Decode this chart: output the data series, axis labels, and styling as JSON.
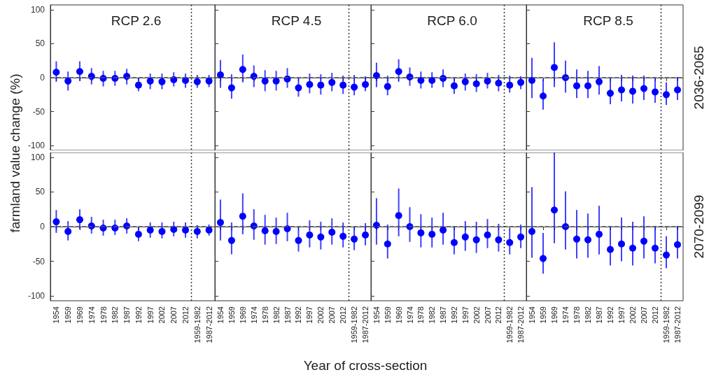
{
  "chart_data": [
    {
      "type": "scatter",
      "title": "RCP 2.6",
      "ylabel": "farmland value change (%)",
      "categories": [
        "1954",
        "1959",
        "1969",
        "1974",
        "1978",
        "1982",
        "1987",
        "1992",
        "1997",
        "2002",
        "2007",
        "2012",
        "1959-1982",
        "1987-2012"
      ],
      "ylim": [
        -107,
        107
      ],
      "yticks": [
        -100,
        -50,
        0,
        50,
        100
      ],
      "tick_labels": "y",
      "grid": false,
      "marker": "circle",
      "ref_lines": [
        {
          "axis": "y",
          "value": 0,
          "line_style": "dashed",
          "color": "#555555"
        },
        {
          "axis": "x",
          "value": "1959-1982",
          "line_style": "dotted",
          "color": "#333333"
        }
      ],
      "series": [
        {
          "color": "#0000ff",
          "values": [
            8,
            -5,
            9,
            2,
            -1,
            -1,
            2,
            -11,
            -5,
            -6,
            -3,
            -4,
            -6,
            -5
          ],
          "errors": [
            [
              -6,
              24
            ],
            [
              -19,
              9
            ],
            [
              -5,
              24
            ],
            [
              -10,
              14
            ],
            [
              -13,
              10
            ],
            [
              -12,
              10
            ],
            [
              -10,
              13
            ],
            [
              -20,
              0
            ],
            [
              -17,
              6
            ],
            [
              -17,
              6
            ],
            [
              -13,
              8
            ],
            [
              -15,
              6
            ],
            [
              -15,
              4
            ],
            [
              -14,
              4
            ]
          ]
        }
      ]
    },
    {
      "type": "scatter",
      "title": "RCP 4.5",
      "categories": [
        "1954",
        "1959",
        "1969",
        "1974",
        "1978",
        "1982",
        "1987",
        "1992",
        "1997",
        "2002",
        "2007",
        "2012",
        "1959-1982",
        "1987-2012"
      ],
      "ylim": [
        -107,
        107
      ],
      "yticks": [
        -100,
        -50,
        0,
        50,
        100
      ],
      "tick_labels": false,
      "grid": false,
      "marker": "circle",
      "ref_lines": [
        {
          "axis": "y",
          "value": 0,
          "line_style": "dashed",
          "color": "#555555"
        },
        {
          "axis": "x",
          "value": "1959-1982",
          "line_style": "dotted",
          "color": "#333333"
        }
      ],
      "series": [
        {
          "color": "#0000ff",
          "values": [
            4,
            -15,
            12,
            2,
            -5,
            -5,
            -2,
            -15,
            -10,
            -11,
            -7,
            -11,
            -14,
            -10
          ],
          "errors": [
            [
              -15,
              26
            ],
            [
              -31,
              5
            ],
            [
              -7,
              34
            ],
            [
              -14,
              18
            ],
            [
              -20,
              11
            ],
            [
              -19,
              10
            ],
            [
              -15,
              14
            ],
            [
              -28,
              0
            ],
            [
              -23,
              6
            ],
            [
              -25,
              5
            ],
            [
              -20,
              7
            ],
            [
              -24,
              3
            ],
            [
              -26,
              4
            ],
            [
              -20,
              2
            ]
          ]
        }
      ]
    },
    {
      "type": "scatter",
      "title": "RCP 6.0",
      "categories": [
        "1954",
        "1959",
        "1969",
        "1974",
        "1978",
        "1982",
        "1987",
        "1992",
        "1997",
        "2002",
        "2007",
        "2012",
        "1959-1982",
        "1987-2012"
      ],
      "ylim": [
        -107,
        107
      ],
      "yticks": [
        -100,
        -50,
        0,
        50,
        100
      ],
      "tick_labels": false,
      "grid": false,
      "marker": "circle",
      "ref_lines": [
        {
          "axis": "y",
          "value": 0,
          "line_style": "dashed",
          "color": "#555555"
        },
        {
          "axis": "x",
          "value": "1959-1982",
          "line_style": "dotted",
          "color": "#333333"
        }
      ],
      "series": [
        {
          "color": "#0000ff",
          "values": [
            3,
            -13,
            9,
            1,
            -4,
            -4,
            -1,
            -12,
            -6,
            -9,
            -5,
            -8,
            -11,
            -7
          ],
          "errors": [
            [
              -14,
              22
            ],
            [
              -26,
              3
            ],
            [
              -6,
              27
            ],
            [
              -12,
              15
            ],
            [
              -16,
              9
            ],
            [
              -15,
              8
            ],
            [
              -14,
              12
            ],
            [
              -24,
              0
            ],
            [
              -19,
              6
            ],
            [
              -21,
              5
            ],
            [
              -16,
              7
            ],
            [
              -20,
              4
            ],
            [
              -22,
              3
            ],
            [
              -17,
              2
            ]
          ]
        }
      ]
    },
    {
      "type": "scatter",
      "title": "RCP 8.5",
      "y2label": "2036-2065",
      "categories": [
        "1954",
        "1959",
        "1969",
        "1974",
        "1978",
        "1982",
        "1987",
        "1992",
        "1997",
        "2002",
        "2007",
        "2012",
        "1959-1982",
        "1987-2012"
      ],
      "ylim": [
        -107,
        107
      ],
      "yticks": [
        -100,
        -50,
        0,
        50,
        100
      ],
      "tick_labels": false,
      "grid": false,
      "marker": "circle",
      "ref_lines": [
        {
          "axis": "y",
          "value": 0,
          "line_style": "dashed",
          "color": "#555555"
        },
        {
          "axis": "x",
          "value": "1959-1982",
          "line_style": "dotted",
          "color": "#333333"
        }
      ],
      "series": [
        {
          "color": "#0000ff",
          "values": [
            -4,
            -27,
            15,
            0,
            -12,
            -12,
            -6,
            -23,
            -18,
            -20,
            -16,
            -21,
            -25,
            -18
          ],
          "errors": [
            [
              -30,
              29
            ],
            [
              -47,
              -2
            ],
            [
              -14,
              52
            ],
            [
              -22,
              25
            ],
            [
              -30,
              12
            ],
            [
              -30,
              10
            ],
            [
              -25,
              17
            ],
            [
              -39,
              0
            ],
            [
              -35,
              4
            ],
            [
              -38,
              3
            ],
            [
              -33,
              3
            ],
            [
              -37,
              0
            ],
            [
              -40,
              -7
            ],
            [
              -33,
              1
            ]
          ]
        }
      ]
    },
    {
      "type": "scatter",
      "categories": [
        "1954",
        "1959",
        "1969",
        "1974",
        "1978",
        "1982",
        "1987",
        "1992",
        "1997",
        "2002",
        "2007",
        "2012",
        "1959-1982",
        "1987-2012"
      ],
      "ylim": [
        -107,
        107
      ],
      "yticks": [
        -100,
        -50,
        0,
        50,
        100
      ],
      "grid": false,
      "marker": "circle",
      "ref_lines": [
        {
          "axis": "y",
          "value": 0,
          "line_style": "dashed",
          "color": "#555555"
        },
        {
          "axis": "x",
          "value": "1959-1982",
          "line_style": "dotted",
          "color": "#333333"
        }
      ],
      "series": [
        {
          "color": "#0000ff",
          "values": [
            7,
            -7,
            10,
            1,
            -2,
            -2,
            1,
            -11,
            -5,
            -7,
            -4,
            -5,
            -7,
            -5
          ],
          "errors": [
            [
              -9,
              24
            ],
            [
              -20,
              8
            ],
            [
              -4,
              25
            ],
            [
              -10,
              14
            ],
            [
              -13,
              10
            ],
            [
              -12,
              10
            ],
            [
              -10,
              12
            ],
            [
              -21,
              0
            ],
            [
              -16,
              6
            ],
            [
              -17,
              6
            ],
            [
              -14,
              7
            ],
            [
              -16,
              6
            ],
            [
              -17,
              2
            ],
            [
              -13,
              3
            ]
          ]
        }
      ]
    },
    {
      "type": "scatter",
      "xlabel": "Year of cross-section",
      "categories": [
        "1954",
        "1959",
        "1969",
        "1974",
        "1978",
        "1982",
        "1987",
        "1992",
        "1997",
        "2002",
        "2007",
        "2012",
        "1959-1982",
        "1987-2012"
      ],
      "ylim": [
        -107,
        107
      ],
      "yticks": [
        -100,
        -50,
        0,
        50,
        100
      ],
      "tick_labels": "x",
      "grid": false,
      "marker": "circle",
      "ref_lines": [
        {
          "axis": "y",
          "value": 0,
          "line_style": "dashed",
          "color": "#555555"
        },
        {
          "axis": "x",
          "value": "1959-1982",
          "line_style": "dotted",
          "color": "#333333"
        }
      ],
      "series": [
        {
          "color": "#0000ff",
          "values": [
            6,
            -20,
            15,
            1,
            -6,
            -7,
            -3,
            -20,
            -12,
            -15,
            -8,
            -14,
            -18,
            -12
          ],
          "errors": [
            [
              -20,
              39
            ],
            [
              -40,
              6
            ],
            [
              -11,
              48
            ],
            [
              -19,
              25
            ],
            [
              -26,
              17
            ],
            [
              -25,
              13
            ],
            [
              -21,
              20
            ],
            [
              -36,
              0
            ],
            [
              -30,
              9
            ],
            [
              -33,
              7
            ],
            [
              -26,
              12
            ],
            [
              -30,
              6
            ],
            [
              -34,
              0
            ],
            [
              -27,
              5
            ]
          ]
        }
      ]
    },
    {
      "type": "scatter",
      "categories": [
        "1954",
        "1959",
        "1969",
        "1974",
        "1978",
        "1982",
        "1987",
        "1992",
        "1997",
        "2002",
        "2007",
        "2012",
        "1959-1982",
        "1987-2012"
      ],
      "ylim": [
        -107,
        107
      ],
      "yticks": [
        -100,
        -50,
        0,
        50,
        100
      ],
      "tick_labels": "x",
      "grid": false,
      "marker": "circle",
      "ref_lines": [
        {
          "axis": "y",
          "value": 0,
          "line_style": "dashed",
          "color": "#555555"
        },
        {
          "axis": "x",
          "value": "1959-1982",
          "line_style": "dotted",
          "color": "#333333"
        }
      ],
      "series": [
        {
          "color": "#0000ff",
          "values": [
            2,
            -25,
            16,
            0,
            -9,
            -11,
            -5,
            -23,
            -15,
            -19,
            -12,
            -19,
            -23,
            -15
          ],
          "errors": [
            [
              -26,
              41
            ],
            [
              -46,
              3
            ],
            [
              -14,
              55
            ],
            [
              -22,
              28
            ],
            [
              -30,
              18
            ],
            [
              -30,
              13
            ],
            [
              -26,
              20
            ],
            [
              -40,
              0
            ],
            [
              -35,
              8
            ],
            [
              -38,
              7
            ],
            [
              -31,
              11
            ],
            [
              -36,
              4
            ],
            [
              -40,
              -3
            ],
            [
              -31,
              3
            ]
          ]
        }
      ]
    },
    {
      "type": "scatter",
      "y2label": "2070-2099",
      "categories": [
        "1954",
        "1959",
        "1969",
        "1974",
        "1978",
        "1982",
        "1987",
        "1992",
        "1997",
        "2002",
        "2007",
        "2012",
        "1959-1982",
        "1987-2012"
      ],
      "ylim": [
        -107,
        107
      ],
      "yticks": [
        -100,
        -50,
        0,
        50,
        100
      ],
      "tick_labels": "x",
      "grid": false,
      "marker": "circle",
      "ref_lines": [
        {
          "axis": "y",
          "value": 0,
          "line_style": "dashed",
          "color": "#555555"
        },
        {
          "axis": "x",
          "value": "1959-1982",
          "line_style": "dotted",
          "color": "#333333"
        }
      ],
      "series": [
        {
          "color": "#0000ff",
          "values": [
            -7,
            -46,
            24,
            0,
            -18,
            -19,
            -11,
            -33,
            -25,
            -31,
            -21,
            -31,
            -41,
            -26
          ],
          "errors": [
            [
              -45,
              57
            ],
            [
              -68,
              -9
            ],
            [
              -24,
              107
            ],
            [
              -33,
              51
            ],
            [
              -46,
              24
            ],
            [
              -45,
              19
            ],
            [
              -40,
              30
            ],
            [
              -56,
              0
            ],
            [
              -50,
              13
            ],
            [
              -56,
              7
            ],
            [
              -46,
              15
            ],
            [
              -53,
              1
            ],
            [
              -60,
              -14
            ],
            [
              -46,
              1
            ]
          ]
        }
      ]
    }
  ]
}
